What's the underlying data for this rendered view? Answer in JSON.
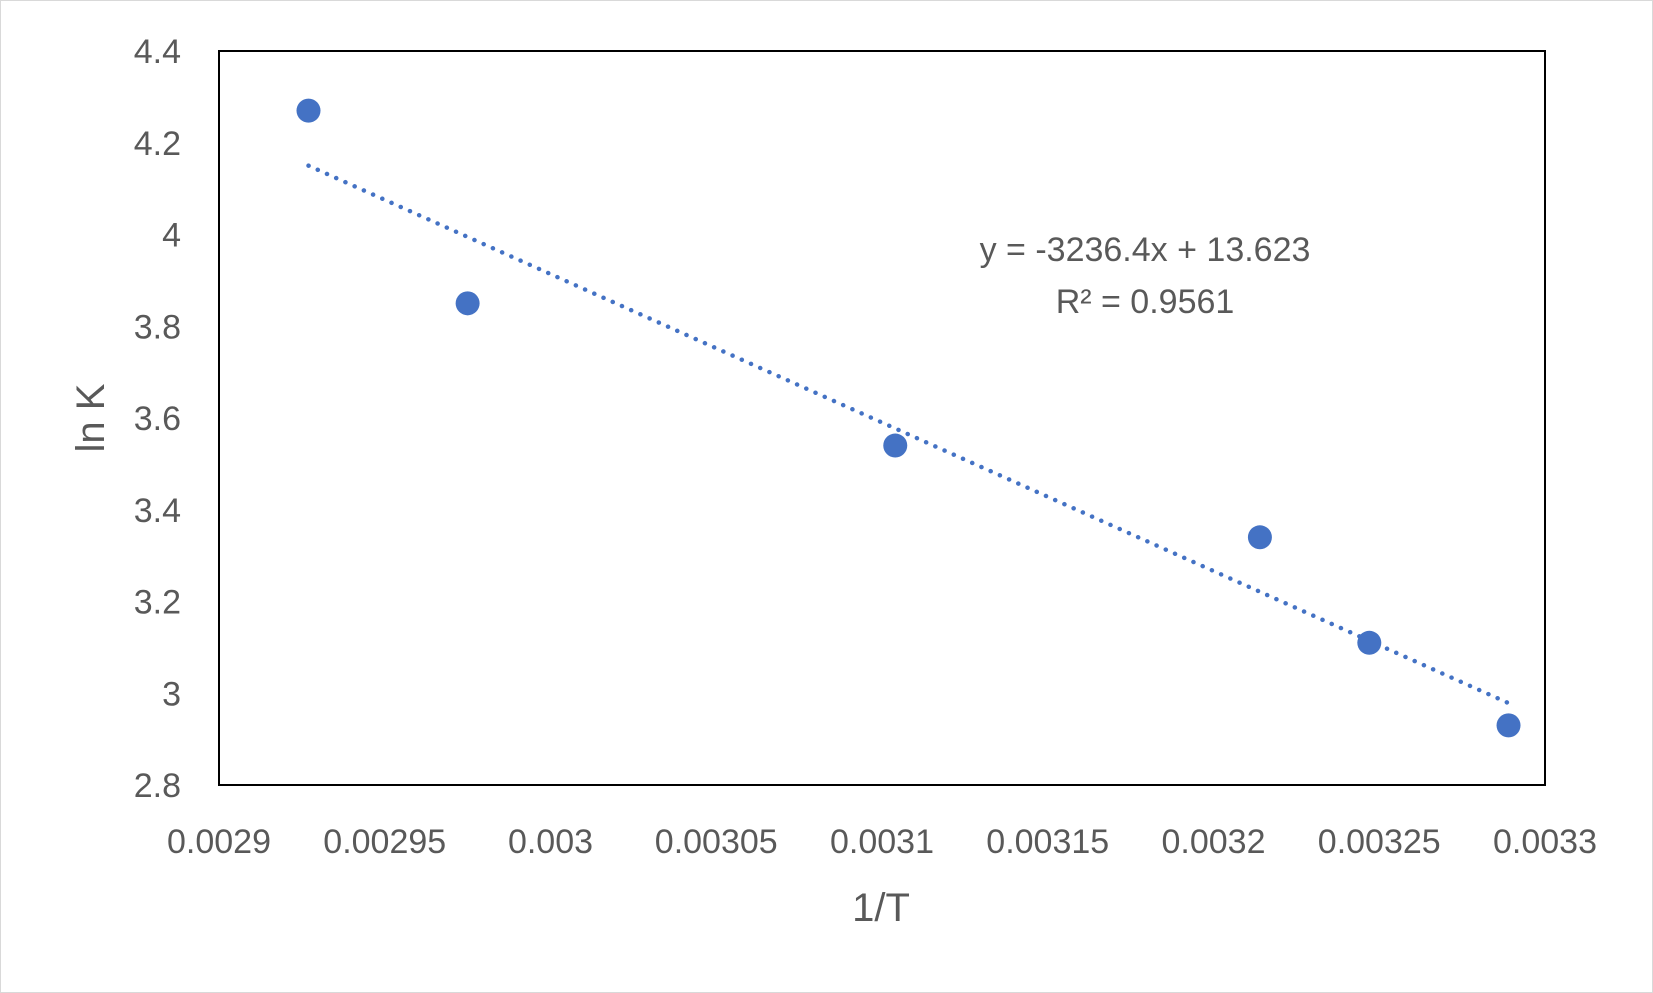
{
  "chart_data": {
    "type": "scatter",
    "title": "",
    "xlabel": "1/T",
    "ylabel": "ln K",
    "xlim": [
      0.0029,
      0.0033
    ],
    "ylim": [
      2.8,
      4.4
    ],
    "x_ticks": [
      0.0029,
      0.00295,
      0.003,
      0.00305,
      0.0031,
      0.00315,
      0.0032,
      0.00325,
      0.0033
    ],
    "x_tick_labels": [
      "0.0029",
      "0.00295",
      "0.003",
      "0.00305",
      "0.0031",
      "0.00315",
      "0.0032",
      "0.00325",
      "0.0033"
    ],
    "y_ticks": [
      2.8,
      3.0,
      3.2,
      3.4,
      3.6,
      3.8,
      4.0,
      4.2,
      4.4
    ],
    "y_tick_labels": [
      "2.8",
      "3",
      "3.2",
      "3.4",
      "3.6",
      "3.8",
      "4",
      "4.2",
      "4.4"
    ],
    "grid": false,
    "series": [
      {
        "color": "#4472c4",
        "points": [
          {
            "x": 0.002927,
            "y": 4.27
          },
          {
            "x": 0.002975,
            "y": 3.85
          },
          {
            "x": 0.003104,
            "y": 3.54
          },
          {
            "x": 0.003214,
            "y": 3.34
          },
          {
            "x": 0.003247,
            "y": 3.11
          },
          {
            "x": 0.003289,
            "y": 2.93
          }
        ]
      }
    ],
    "trendline": {
      "type": "linear",
      "style": "dotted",
      "color": "#4472c4",
      "slope": -3236.4,
      "intercept": 13.623,
      "x_range": [
        0.002927,
        0.003289
      ],
      "equation_label": "y = -3236.4x + 13.623",
      "r2_label": "R² = 0.9561"
    }
  }
}
